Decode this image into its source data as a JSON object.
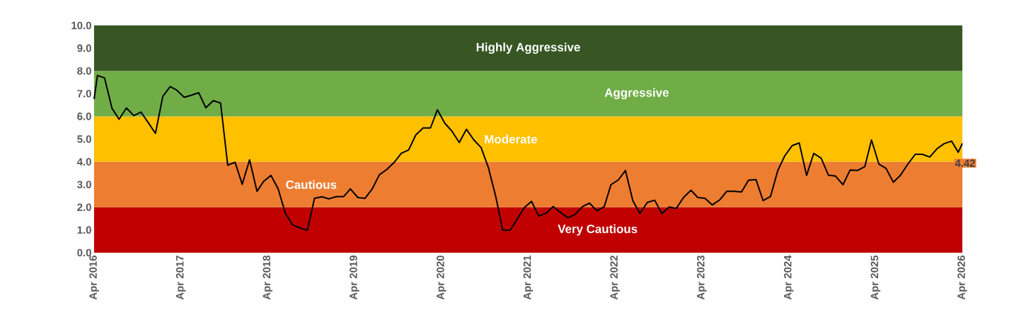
{
  "chart_data": {
    "type": "line",
    "x": [
      "2016-04-01",
      "2016-04-15",
      "2016-05-15",
      "2016-06-15",
      "2016-07-15",
      "2016-08-15",
      "2016-09-15",
      "2016-10-15",
      "2016-11-15",
      "2016-12-15",
      "2017-01-15",
      "2017-02-15",
      "2017-03-15",
      "2017-04-15",
      "2017-05-15",
      "2017-06-15",
      "2017-07-15",
      "2017-08-15",
      "2017-09-15",
      "2017-10-15",
      "2017-11-15",
      "2017-12-15",
      "2018-01-15",
      "2018-02-15",
      "2018-03-15",
      "2018-04-15",
      "2018-05-15",
      "2018-06-15",
      "2018-07-15",
      "2018-08-15",
      "2018-09-15",
      "2018-10-15",
      "2018-11-15",
      "2018-12-15",
      "2019-01-15",
      "2019-02-15",
      "2019-03-15",
      "2019-04-15",
      "2019-05-15",
      "2019-06-15",
      "2019-07-15",
      "2019-08-15",
      "2019-09-15",
      "2019-10-15",
      "2019-11-15",
      "2019-12-15",
      "2020-01-15",
      "2020-02-15",
      "2020-03-15",
      "2020-04-15",
      "2020-05-15",
      "2020-06-15",
      "2020-07-15",
      "2020-08-15",
      "2020-09-15",
      "2020-10-15",
      "2020-11-15",
      "2020-12-15",
      "2021-01-15",
      "2021-02-15",
      "2021-03-15",
      "2021-04-15",
      "2021-05-15",
      "2021-06-15",
      "2021-07-15",
      "2021-08-15",
      "2021-09-15",
      "2021-10-15",
      "2021-11-15",
      "2021-12-15",
      "2022-01-15",
      "2022-02-15",
      "2022-03-15",
      "2022-04-15",
      "2022-05-15",
      "2022-06-15",
      "2022-07-15",
      "2022-08-15",
      "2022-09-15",
      "2022-10-15",
      "2022-11-15",
      "2022-12-15",
      "2023-01-15",
      "2023-02-15",
      "2023-03-15",
      "2023-04-15",
      "2023-05-15",
      "2023-06-15",
      "2023-07-15",
      "2023-08-15",
      "2023-09-15",
      "2023-10-15",
      "2023-11-15",
      "2023-12-15",
      "2024-01-15",
      "2024-02-15",
      "2024-03-15",
      "2024-04-15",
      "2024-05-15",
      "2024-06-15",
      "2024-07-15",
      "2024-08-15",
      "2024-09-15",
      "2024-10-15",
      "2024-11-15",
      "2024-12-15",
      "2025-01-15",
      "2025-02-15",
      "2025-03-15",
      "2025-04-15",
      "2025-05-15",
      "2025-06-15",
      "2025-07-15",
      "2025-08-15",
      "2025-09-15",
      "2025-10-15",
      "2025-11-15",
      "2025-12-15",
      "2026-01-15",
      "2026-02-15",
      "2026-03-15",
      "2026-04-01"
    ],
    "series": [
      {
        "color": "#000000",
        "values": [
          6.76,
          7.8,
          7.69,
          6.36,
          5.87,
          6.37,
          6.03,
          6.19,
          5.72,
          5.25,
          6.88,
          7.31,
          7.15,
          6.84,
          6.93,
          7.04,
          6.38,
          6.69,
          6.59,
          3.85,
          3.98,
          3.01,
          4.09,
          2.7,
          3.14,
          3.4,
          2.81,
          1.72,
          1.22,
          1.09,
          0.99,
          2.39,
          2.46,
          2.37,
          2.47,
          2.47,
          2.81,
          2.43,
          2.39,
          2.81,
          3.43,
          3.66,
          3.97,
          4.37,
          4.52,
          5.18,
          5.49,
          5.49,
          6.29,
          5.7,
          5.35,
          4.85,
          5.43,
          4.97,
          4.62,
          3.76,
          2.49,
          0.99,
          0.99,
          1.5,
          1.98,
          2.26,
          1.61,
          1.74,
          2.03,
          1.77,
          1.54,
          1.68,
          2.03,
          2.18,
          1.84,
          2.03,
          2.99,
          3.2,
          3.62,
          2.29,
          1.72,
          2.21,
          2.31,
          1.72,
          2.01,
          1.95,
          2.44,
          2.75,
          2.43,
          2.39,
          2.1,
          2.32,
          2.7,
          2.7,
          2.67,
          3.19,
          3.22,
          2.29,
          2.47,
          3.62,
          4.26,
          4.71,
          4.83,
          3.4,
          4.37,
          4.16,
          3.41,
          3.37,
          2.99,
          3.64,
          3.62,
          3.79,
          4.96,
          3.9,
          3.71,
          3.1,
          3.41,
          3.9,
          4.33,
          4.33,
          4.21,
          4.57,
          4.8,
          4.91,
          4.42,
          4.81
        ]
      }
    ],
    "xlim": [
      "2016-04-01",
      "2026-04-01"
    ],
    "xticks": [
      {
        "value": "2016-04-01",
        "label": "Apr 2016"
      },
      {
        "value": "2017-04-01",
        "label": "Apr 2017"
      },
      {
        "value": "2018-04-01",
        "label": "Apr 2018"
      },
      {
        "value": "2019-04-01",
        "label": "Apr 2019"
      },
      {
        "value": "2020-04-01",
        "label": "Apr 2020"
      },
      {
        "value": "2021-04-01",
        "label": "Apr 2021"
      },
      {
        "value": "2022-04-01",
        "label": "Apr 2022"
      },
      {
        "value": "2023-04-01",
        "label": "Apr 2023"
      },
      {
        "value": "2024-04-01",
        "label": "Apr 2024"
      },
      {
        "value": "2025-04-01",
        "label": "Apr 2025"
      },
      {
        "value": "2026-04-01",
        "label": "Apr 2026"
      }
    ],
    "ylim": [
      0,
      10
    ],
    "yticks": [
      {
        "value": 0,
        "label": "0.0"
      },
      {
        "value": 1,
        "label": "1.0"
      },
      {
        "value": 2,
        "label": "2.0"
      },
      {
        "value": 3,
        "label": "3.0"
      },
      {
        "value": 4,
        "label": "4.0"
      },
      {
        "value": 5,
        "label": "5.0"
      },
      {
        "value": 6,
        "label": "6.0"
      },
      {
        "value": 7,
        "label": "7.0"
      },
      {
        "value": 8,
        "label": "8.0"
      },
      {
        "value": 9,
        "label": "9.0"
      },
      {
        "value": 10,
        "label": "10.0"
      }
    ],
    "bands": [
      {
        "axis": "y",
        "from": 0,
        "to": 2,
        "label": "Very Cautious",
        "color": "#c00000"
      },
      {
        "axis": "y",
        "from": 2,
        "to": 4,
        "label": "Cautious",
        "color": "#ed7d31"
      },
      {
        "axis": "y",
        "from": 4,
        "to": 6,
        "label": "Moderate",
        "color": "#ffc000"
      },
      {
        "axis": "y",
        "from": 6,
        "to": 8,
        "label": "Aggressive",
        "color": "#70ad47"
      },
      {
        "axis": "y",
        "from": 8,
        "to": 10,
        "label": "Highly Aggressive",
        "color": "#375623"
      }
    ],
    "annotations": [
      {
        "text": "4.42",
        "x": "2026-03-15",
        "y": 4.42
      }
    ]
  }
}
